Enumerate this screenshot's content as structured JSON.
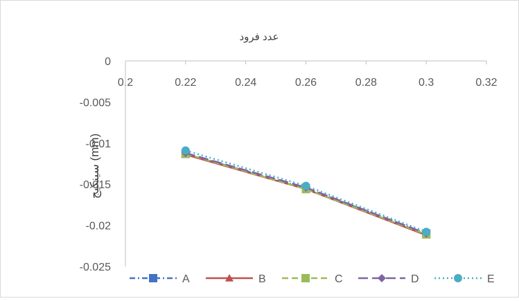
{
  "chart_data": {
    "type": "line",
    "title": "عدد فرود",
    "xlabel": "",
    "ylabel": "سینکیج (mm)",
    "xlim": [
      0.2,
      0.32
    ],
    "ylim": [
      -0.025,
      0
    ],
    "x_ticks": [
      "0.2",
      "0.22",
      "0.24",
      "0.26",
      "0.28",
      "0.3",
      "0.32"
    ],
    "y_ticks": [
      "0",
      "-0.005",
      "-0.01",
      "-0.015",
      "-0.02",
      "-0.025"
    ],
    "x": [
      0.22,
      0.26,
      0.3
    ],
    "series": [
      {
        "name": "A",
        "values": [
          -0.0113,
          -0.0155,
          -0.021
        ],
        "color": "#4472c4",
        "marker": "square",
        "dash": "dash-dot"
      },
      {
        "name": "B",
        "values": [
          -0.0114,
          -0.0156,
          -0.0212
        ],
        "color": "#c0504d",
        "marker": "triangle",
        "dash": "solid"
      },
      {
        "name": "C",
        "values": [
          -0.0113,
          -0.0156,
          -0.0211
        ],
        "color": "#9bbb59",
        "marker": "square",
        "dash": "dash"
      },
      {
        "name": "D",
        "values": [
          -0.0112,
          -0.0154,
          -0.021
        ],
        "color": "#8064a2",
        "marker": "diamond",
        "dash": "long-dash"
      },
      {
        "name": "E",
        "values": [
          -0.0109,
          -0.0152,
          -0.0208
        ],
        "color": "#4bacc6",
        "marker": "circle",
        "dash": "dot"
      }
    ],
    "grid": false,
    "legend": "bottom"
  }
}
